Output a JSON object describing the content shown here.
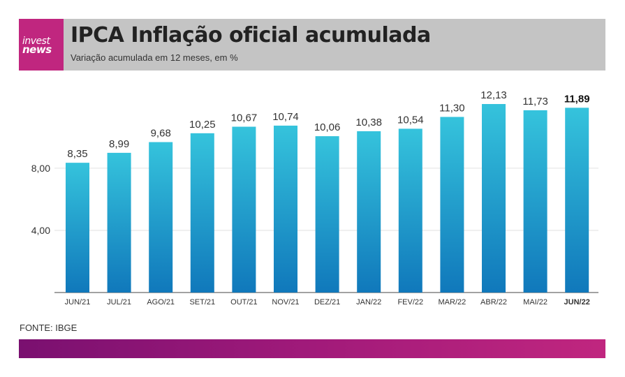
{
  "header": {
    "logo_line1": "invest",
    "logo_line2": "news",
    "title": "IPCA Inflação oficial acumulada",
    "subtitle": "Variação acumulada em 12 meses, em %"
  },
  "source": "FONTE: IBGE",
  "colors": {
    "bar_top": "#35c3dc",
    "bar_bottom": "#1078bb",
    "logo_bg": "#c0267f",
    "header_bg": "#c4c4c4"
  },
  "chart_data": {
    "type": "bar",
    "title": "IPCA Inflação oficial acumulada",
    "xlabel": "",
    "ylabel": "",
    "categories": [
      "JUN/21",
      "JUL/21",
      "AGO/21",
      "SET/21",
      "OUT/21",
      "NOV/21",
      "DEZ/21",
      "JAN/22",
      "FEV/22",
      "MAR/22",
      "ABR/22",
      "MAI/22",
      "JUN/22"
    ],
    "values": [
      8.35,
      8.99,
      9.68,
      10.25,
      10.67,
      10.74,
      10.06,
      10.38,
      10.54,
      11.3,
      12.13,
      11.73,
      11.89
    ],
    "value_labels": [
      "8,35",
      "8,99",
      "9,68",
      "10,25",
      "10,67",
      "10,74",
      "10,06",
      "10,38",
      "10,54",
      "11,30",
      "12,13",
      "11,73",
      "11,89"
    ],
    "yticks": [
      4,
      8
    ],
    "ytick_labels": [
      "4,00",
      "8,00"
    ],
    "ylim": [
      0,
      12.13
    ],
    "highlight_index": 12,
    "grid": true
  }
}
